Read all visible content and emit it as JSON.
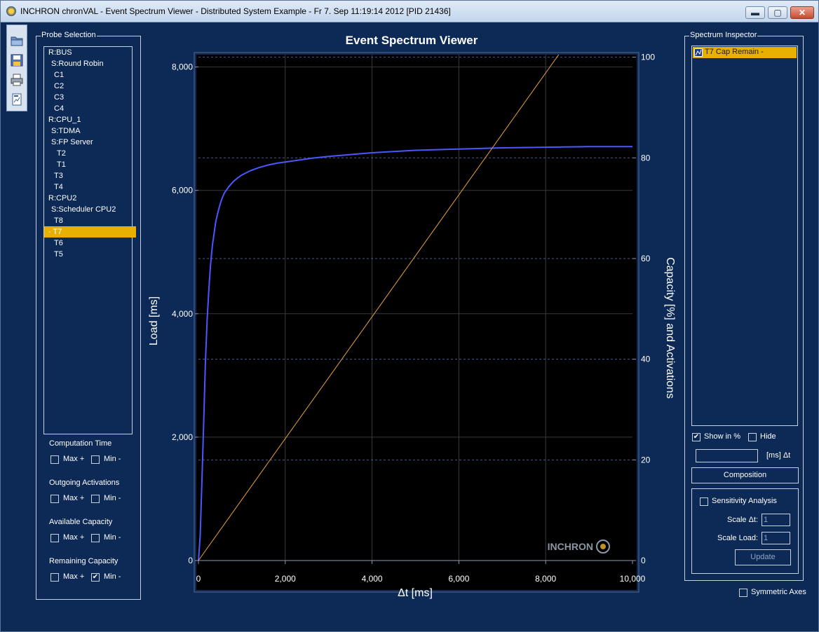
{
  "window": {
    "title": "INCHRON chronVAL - Event Spectrum Viewer - Distributed System Example - Fr 7. Sep 11:19:14 2012 [PID 21436]",
    "controls": {
      "minimize": "▬",
      "maximize": "▢",
      "close": "✕"
    }
  },
  "toolbar": {
    "icons": [
      "open-icon",
      "save-icon",
      "print-icon",
      "export-icon"
    ]
  },
  "probe_selection": {
    "label": "Probe Selection",
    "items": [
      {
        "text": "R:BUS",
        "indent": 0
      },
      {
        "text": "S:Round Robin",
        "indent": 1
      },
      {
        "text": "C1",
        "indent": 2
      },
      {
        "text": "C2",
        "indent": 2
      },
      {
        "text": "C3",
        "indent": 2
      },
      {
        "text": "C4",
        "indent": 2
      },
      {
        "text": "R:CPU_1",
        "indent": 0
      },
      {
        "text": "S:TDMA",
        "indent": 1
      },
      {
        "text": "S:FP Server",
        "indent": 1
      },
      {
        "text": "T2",
        "indent": 3
      },
      {
        "text": "T1",
        "indent": 3
      },
      {
        "text": "T3",
        "indent": 2
      },
      {
        "text": "T4",
        "indent": 2
      },
      {
        "text": "R:CPU2",
        "indent": 0
      },
      {
        "text": "S:Scheduler CPU2",
        "indent": 1
      },
      {
        "text": "T8",
        "indent": 2
      },
      {
        "text": "· T7",
        "indent": 0,
        "selected": true
      },
      {
        "text": "T6",
        "indent": 2
      },
      {
        "text": "T5",
        "indent": 2
      }
    ]
  },
  "options": {
    "sections": [
      {
        "label": "Computation Time",
        "max": {
          "text": "Max +",
          "checked": false
        },
        "min": {
          "text": "Min -",
          "checked": false
        }
      },
      {
        "label": "Outgoing Activations",
        "max": {
          "text": "Max +",
          "checked": false
        },
        "min": {
          "text": "Min -",
          "checked": false
        }
      },
      {
        "label": "Available Capacity",
        "max": {
          "text": "Max +",
          "checked": false
        },
        "min": {
          "text": "Min -",
          "checked": false
        }
      },
      {
        "label": "Remaining Capacity",
        "max": {
          "text": "Max +",
          "checked": false
        },
        "min": {
          "text": "Min -",
          "checked": true
        }
      }
    ]
  },
  "chart_data": {
    "type": "line",
    "title": "Event Spectrum Viewer",
    "xlabel": "Δt [ms]",
    "ylabel": "Load [ms]",
    "y2label": "Capacity [%] and Activations",
    "xlim": [
      0,
      10000
    ],
    "ylim": [
      0,
      8200
    ],
    "y2lim": [
      0,
      100.5
    ],
    "xticks": [
      "0",
      "2,000",
      "4,000",
      "6,000",
      "8,000",
      "10,000"
    ],
    "xtick_values": [
      0,
      2000,
      4000,
      6000,
      8000,
      10000
    ],
    "yticks": [
      "0",
      "2,000",
      "4,000",
      "6,000",
      "8,000"
    ],
    "ytick_values": [
      0,
      2000,
      4000,
      6000,
      8000
    ],
    "y2ticks": [
      "0",
      "20",
      "40",
      "60",
      "80",
      "100"
    ],
    "y2tick_values": [
      0,
      20,
      40,
      60,
      80,
      100
    ],
    "grid": true,
    "watermark": "INCHRON",
    "colors": {
      "background": "#000000",
      "load": "#4b57ff",
      "capacity": "#e8a23a",
      "grid": "#3a3a3a",
      "dashed": "#4d5a8a"
    },
    "series": [
      {
        "axis": "left",
        "color": "#4b57ff",
        "x": [
          0,
          40,
          80,
          120,
          160,
          200,
          240,
          280,
          320,
          360,
          400,
          450,
          500,
          550,
          600,
          700,
          800,
          900,
          1000,
          1200,
          1400,
          1600,
          1800,
          2000,
          2300,
          2600,
          3000,
          3500,
          4000,
          4500,
          5000,
          6000,
          7000,
          8000,
          9000,
          10000
        ],
        "y": [
          0,
          400,
          1300,
          2200,
          3200,
          3900,
          4400,
          4800,
          5100,
          5300,
          5500,
          5650,
          5780,
          5880,
          5960,
          6060,
          6140,
          6200,
          6250,
          6320,
          6370,
          6410,
          6440,
          6460,
          6490,
          6520,
          6550,
          6580,
          6610,
          6630,
          6650,
          6670,
          6690,
          6700,
          6710,
          6710
        ]
      },
      {
        "axis": "right",
        "color": "#e8a23a",
        "x": [
          0,
          8300
        ],
        "y": [
          0,
          100.5
        ]
      }
    ]
  },
  "spectrum_inspector": {
    "label": "Spectrum Inspector",
    "items": [
      {
        "text": "T7 Cap Remain -",
        "selected": true
      }
    ],
    "show_in_pct": {
      "label": "Show in %",
      "checked": true
    },
    "hide": {
      "label": "Hide",
      "checked": false
    },
    "dt_input": {
      "value": "",
      "unit": "[ms] Δt"
    },
    "composition_button": "Composition",
    "sensitivity": {
      "label": "Sensitivity Analysis",
      "checked": false,
      "scale_dt": {
        "label": "Scale Δt:",
        "value": "1"
      },
      "scale_load": {
        "label": "Scale Load:",
        "value": "1"
      },
      "update_button": "Update"
    },
    "symmetric_axes": {
      "label": "Symmetric Axes",
      "checked": false
    }
  }
}
